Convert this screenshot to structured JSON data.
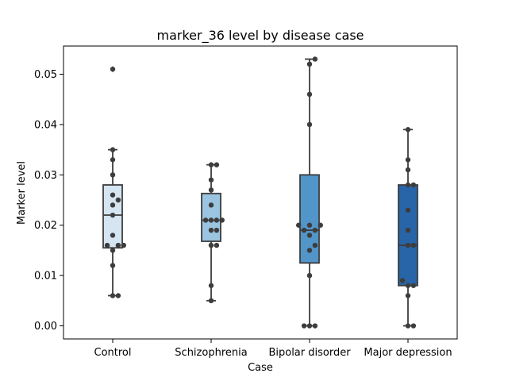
{
  "chart_data": {
    "type": "box",
    "title": "marker_36 level by disease case",
    "xlabel": "Case",
    "ylabel": "Marker level",
    "ylim": [
      -0.0026,
      0.0556
    ],
    "yticks": [
      0.0,
      0.01,
      0.02,
      0.03,
      0.04,
      0.05
    ],
    "ytick_labels": [
      "0.00",
      "0.01",
      "0.02",
      "0.03",
      "0.04",
      "0.05"
    ],
    "categories": [
      "Control",
      "Schizophrenia",
      "Bipolar disorder",
      "Major depression"
    ],
    "colors": [
      "#d6e5f2",
      "#9ac4df",
      "#5295c9",
      "#2865a8"
    ],
    "boxes": [
      {
        "q1": 0.0155,
        "median": 0.022,
        "q3": 0.028,
        "whisker_low": 0.006,
        "whisker_high": 0.035,
        "outliers": [
          0.051
        ]
      },
      {
        "q1": 0.0168,
        "median": 0.021,
        "q3": 0.0263,
        "whisker_low": 0.005,
        "whisker_high": 0.032,
        "outliers": []
      },
      {
        "q1": 0.0125,
        "median": 0.019,
        "q3": 0.03,
        "whisker_low": 0.0,
        "whisker_high": 0.053,
        "outliers": []
      },
      {
        "q1": 0.008,
        "median": 0.016,
        "q3": 0.028,
        "whisker_low": 0.0,
        "whisker_high": 0.039,
        "outliers": []
      }
    ],
    "points": [
      [
        0.006,
        0.006,
        0.012,
        0.015,
        0.016,
        0.016,
        0.016,
        0.018,
        0.022,
        0.024,
        0.025,
        0.026,
        0.03,
        0.033,
        0.035,
        0.051
      ],
      [
        0.005,
        0.008,
        0.016,
        0.016,
        0.019,
        0.019,
        0.021,
        0.021,
        0.021,
        0.021,
        0.024,
        0.027,
        0.029,
        0.032,
        0.032
      ],
      [
        0.0,
        0.0,
        0.0,
        0.01,
        0.015,
        0.016,
        0.018,
        0.019,
        0.019,
        0.02,
        0.02,
        0.02,
        0.04,
        0.046,
        0.052,
        0.053
      ],
      [
        0.0,
        0.0,
        0.006,
        0.008,
        0.008,
        0.009,
        0.016,
        0.016,
        0.019,
        0.023,
        0.028,
        0.028,
        0.031,
        0.033,
        0.039
      ]
    ]
  }
}
